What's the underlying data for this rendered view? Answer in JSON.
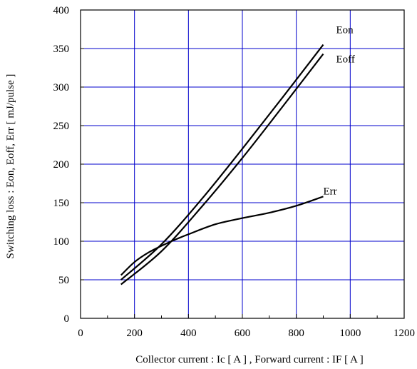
{
  "chart_data": {
    "type": "line",
    "title": "",
    "xlabel": "Collector current : Ic [ A ] , Forward current : IF [ A ]",
    "ylabel": "Switching loss : Eon, Eoff, Err [ mJ/pulse ]",
    "xlim": [
      0,
      1200
    ],
    "ylim": [
      0,
      400
    ],
    "xticks": [
      0,
      200,
      400,
      600,
      800,
      1000,
      1200
    ],
    "yticks": [
      0,
      50,
      100,
      150,
      200,
      250,
      300,
      350,
      400
    ],
    "grid": true,
    "grid_color": "#0000cc",
    "line_color": "#000000",
    "series": [
      {
        "name": "Eon",
        "x": [
          150,
          300,
          450,
          600,
          750,
          900
        ],
        "y": [
          50,
          96,
          155,
          220,
          287,
          355
        ]
      },
      {
        "name": "Eoff",
        "x": [
          150,
          300,
          450,
          600,
          750,
          900
        ],
        "y": [
          44,
          87,
          145,
          208,
          275,
          343
        ]
      },
      {
        "name": "Err",
        "x": [
          150,
          200,
          250,
          300,
          350,
          400,
          500,
          600,
          700,
          800,
          900
        ],
        "y": [
          56,
          73,
          85,
          94,
          102,
          109,
          122,
          130,
          137,
          146,
          158
        ]
      }
    ]
  }
}
